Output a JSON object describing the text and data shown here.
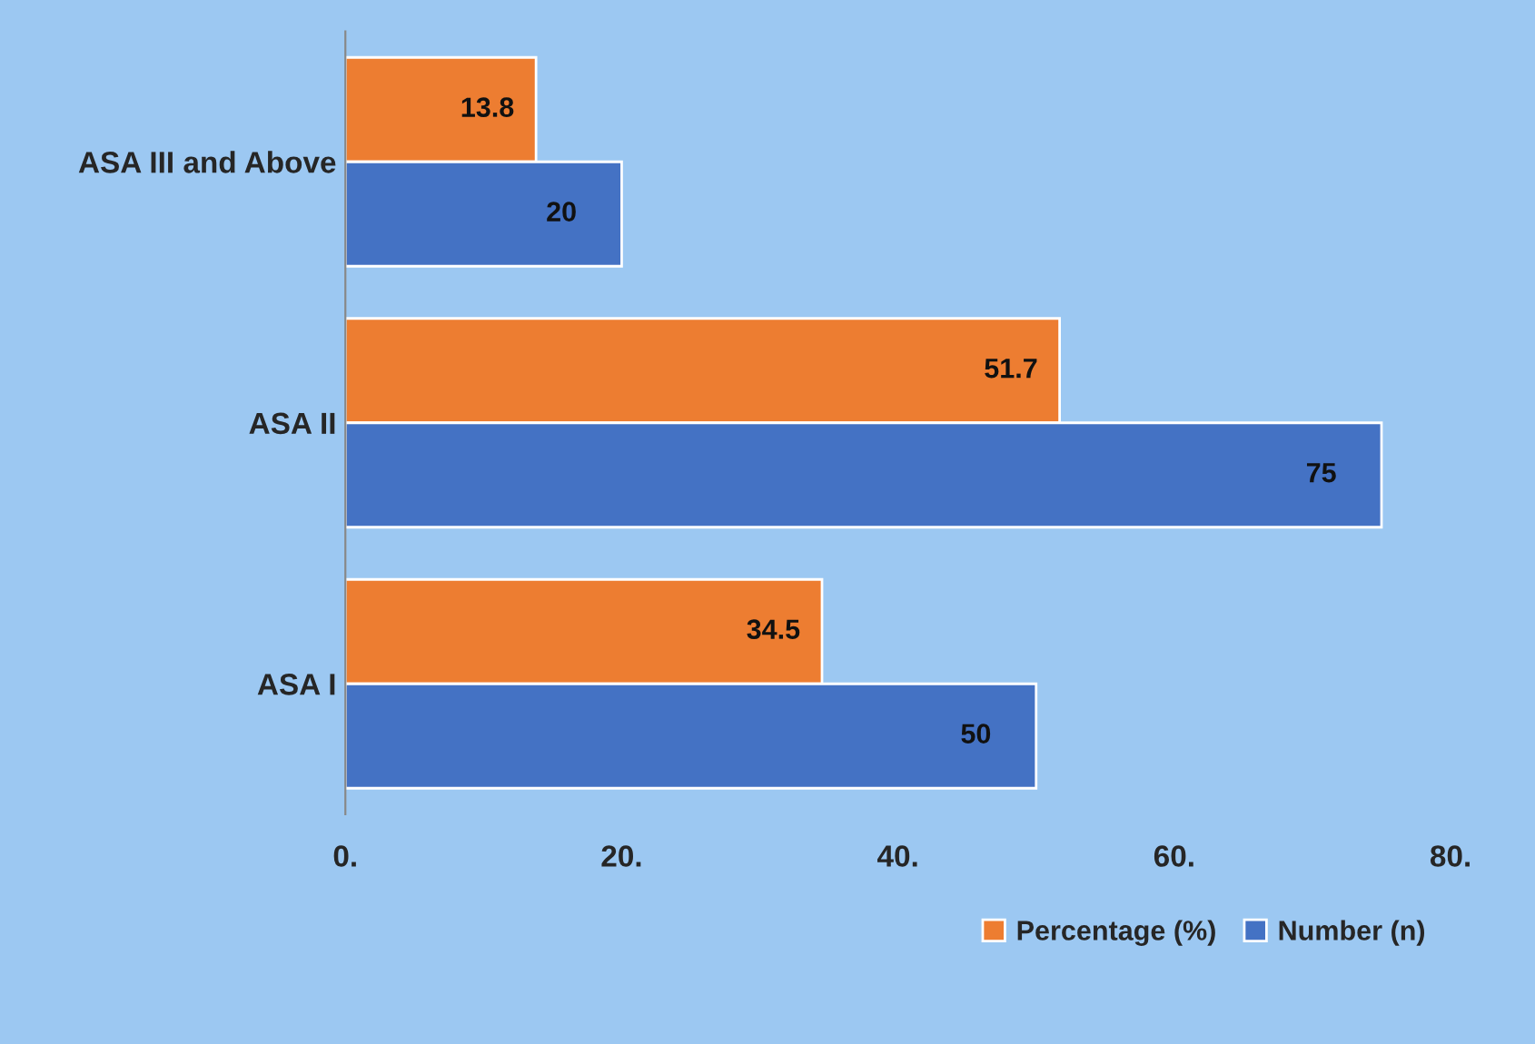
{
  "chart_data": {
    "type": "bar",
    "orientation": "horizontal",
    "categories": [
      "ASA III and Above",
      "ASA II",
      "ASA I"
    ],
    "series": [
      {
        "name": "Percentage (%)",
        "color": "#ed7d31",
        "values": [
          13.8,
          51.7,
          34.5
        ]
      },
      {
        "name": "Number (n)",
        "color": "#4472c4",
        "values": [
          20,
          75,
          50
        ]
      }
    ],
    "xlim": [
      0,
      80
    ],
    "xticks": [
      {
        "value": 0,
        "label": "0."
      },
      {
        "value": 20,
        "label": "20."
      },
      {
        "value": 40,
        "label": "40."
      },
      {
        "value": 60,
        "label": "60."
      },
      {
        "value": 80,
        "label": "80."
      }
    ],
    "data_labels": true,
    "grid": false,
    "legend": "bottom right"
  }
}
